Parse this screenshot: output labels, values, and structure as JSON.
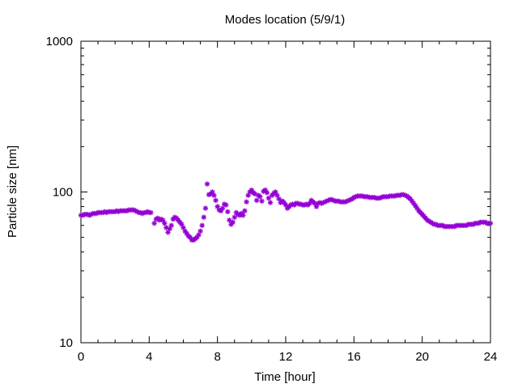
{
  "chart_data": {
    "type": "scatter",
    "title": "Modes location (5/9/1)",
    "xlabel": "Time [hour]",
    "ylabel": "Particle size [nm]",
    "xlim": [
      0,
      24
    ],
    "ylim": [
      10,
      1000
    ],
    "yscale": "log",
    "xticks": [
      0,
      4,
      8,
      12,
      16,
      20,
      24
    ],
    "yticks": [
      10,
      100,
      1000
    ],
    "xtick_labels": [
      "0",
      "4",
      "8",
      "12",
      "16",
      "20",
      "24"
    ],
    "ytick_labels": [
      "10",
      "100",
      "1000"
    ],
    "grid": false,
    "legend": "none",
    "marker": "asterisk",
    "series": [
      {
        "color": "#9400d3",
        "points": [
          [
            0.0,
            70
          ],
          [
            0.1,
            70
          ],
          [
            0.2,
            71
          ],
          [
            0.3,
            71
          ],
          [
            0.4,
            71
          ],
          [
            0.5,
            70
          ],
          [
            0.6,
            71
          ],
          [
            0.7,
            72
          ],
          [
            0.8,
            72
          ],
          [
            0.9,
            72
          ],
          [
            1.0,
            73
          ],
          [
            1.1,
            73
          ],
          [
            1.2,
            73
          ],
          [
            1.3,
            73
          ],
          [
            1.4,
            74
          ],
          [
            1.5,
            73
          ],
          [
            1.6,
            74
          ],
          [
            1.7,
            74
          ],
          [
            1.8,
            74
          ],
          [
            1.9,
            74
          ],
          [
            2.0,
            74
          ],
          [
            2.1,
            75
          ],
          [
            2.2,
            74
          ],
          [
            2.3,
            75
          ],
          [
            2.4,
            75
          ],
          [
            2.5,
            75
          ],
          [
            2.6,
            75
          ],
          [
            2.7,
            75
          ],
          [
            2.8,
            76
          ],
          [
            2.9,
            76
          ],
          [
            3.0,
            76
          ],
          [
            3.1,
            76
          ],
          [
            3.2,
            75
          ],
          [
            3.3,
            74
          ],
          [
            3.4,
            73
          ],
          [
            3.5,
            73
          ],
          [
            3.6,
            72
          ],
          [
            3.7,
            73
          ],
          [
            3.8,
            73
          ],
          [
            3.9,
            74
          ],
          [
            4.0,
            73
          ],
          [
            4.1,
            73
          ],
          [
            4.3,
            62
          ],
          [
            4.4,
            66
          ],
          [
            4.5,
            67
          ],
          [
            4.6,
            65
          ],
          [
            4.7,
            66
          ],
          [
            4.8,
            65
          ],
          [
            4.9,
            62
          ],
          [
            5.0,
            58
          ],
          [
            5.1,
            54
          ],
          [
            5.2,
            57
          ],
          [
            5.3,
            60
          ],
          [
            5.4,
            66
          ],
          [
            5.5,
            68
          ],
          [
            5.6,
            67
          ],
          [
            5.7,
            65
          ],
          [
            5.8,
            63
          ],
          [
            5.9,
            61
          ],
          [
            6.0,
            58
          ],
          [
            6.1,
            55
          ],
          [
            6.2,
            53
          ],
          [
            6.3,
            51
          ],
          [
            6.4,
            50
          ],
          [
            6.5,
            48
          ],
          [
            6.6,
            48
          ],
          [
            6.7,
            49
          ],
          [
            6.8,
            50
          ],
          [
            6.9,
            52
          ],
          [
            7.0,
            55
          ],
          [
            7.1,
            60
          ],
          [
            7.2,
            68
          ],
          [
            7.3,
            78
          ],
          [
            7.4,
            113
          ],
          [
            7.5,
            96
          ],
          [
            7.6,
            97
          ],
          [
            7.7,
            100
          ],
          [
            7.8,
            95
          ],
          [
            7.9,
            88
          ],
          [
            8.0,
            80
          ],
          [
            8.1,
            76
          ],
          [
            8.2,
            75
          ],
          [
            8.3,
            78
          ],
          [
            8.4,
            83
          ],
          [
            8.5,
            82
          ],
          [
            8.6,
            74
          ],
          [
            8.7,
            65
          ],
          [
            8.8,
            61
          ],
          [
            8.9,
            63
          ],
          [
            9.0,
            68
          ],
          [
            9.1,
            73
          ],
          [
            9.2,
            71
          ],
          [
            9.3,
            70
          ],
          [
            9.4,
            72
          ],
          [
            9.5,
            70
          ],
          [
            9.6,
            75
          ],
          [
            9.7,
            86
          ],
          [
            9.8,
            95
          ],
          [
            9.9,
            100
          ],
          [
            10.0,
            103
          ],
          [
            10.1,
            99
          ],
          [
            10.2,
            97
          ],
          [
            10.3,
            88
          ],
          [
            10.4,
            95
          ],
          [
            10.5,
            93
          ],
          [
            10.6,
            87
          ],
          [
            10.7,
            101
          ],
          [
            10.8,
            103
          ],
          [
            10.9,
            99
          ],
          [
            11.0,
            91
          ],
          [
            11.1,
            85
          ],
          [
            11.2,
            95
          ],
          [
            11.3,
            98
          ],
          [
            11.4,
            100
          ],
          [
            11.5,
            95
          ],
          [
            11.6,
            90
          ],
          [
            11.7,
            85
          ],
          [
            11.8,
            87
          ],
          [
            11.9,
            85
          ],
          [
            12.0,
            82
          ],
          [
            12.1,
            78
          ],
          [
            12.2,
            80
          ],
          [
            12.3,
            82
          ],
          [
            12.4,
            83
          ],
          [
            12.5,
            82
          ],
          [
            12.6,
            84
          ],
          [
            12.7,
            84
          ],
          [
            12.8,
            83
          ],
          [
            12.9,
            83
          ],
          [
            13.0,
            82
          ],
          [
            13.1,
            82
          ],
          [
            13.2,
            83
          ],
          [
            13.3,
            82
          ],
          [
            13.4,
            84
          ],
          [
            13.5,
            88
          ],
          [
            13.6,
            86
          ],
          [
            13.7,
            84
          ],
          [
            13.8,
            80
          ],
          [
            13.9,
            84
          ],
          [
            14.0,
            85
          ],
          [
            14.1,
            84
          ],
          [
            14.2,
            85
          ],
          [
            14.3,
            86
          ],
          [
            14.4,
            87
          ],
          [
            14.5,
            88
          ],
          [
            14.6,
            89
          ],
          [
            14.7,
            89
          ],
          [
            14.8,
            88
          ],
          [
            14.9,
            87
          ],
          [
            15.0,
            87
          ],
          [
            15.1,
            87
          ],
          [
            15.2,
            86
          ],
          [
            15.3,
            86
          ],
          [
            15.4,
            86
          ],
          [
            15.5,
            86
          ],
          [
            15.6,
            87
          ],
          [
            15.7,
            88
          ],
          [
            15.8,
            89
          ],
          [
            15.9,
            90
          ],
          [
            16.0,
            92
          ],
          [
            16.1,
            93
          ],
          [
            16.2,
            94
          ],
          [
            16.3,
            94
          ],
          [
            16.4,
            94
          ],
          [
            16.5,
            94
          ],
          [
            16.6,
            93
          ],
          [
            16.7,
            93
          ],
          [
            16.8,
            93
          ],
          [
            16.9,
            92
          ],
          [
            17.0,
            92
          ],
          [
            17.1,
            92
          ],
          [
            17.2,
            92
          ],
          [
            17.3,
            91
          ],
          [
            17.4,
            91
          ],
          [
            17.5,
            91
          ],
          [
            17.6,
            92
          ],
          [
            17.7,
            93
          ],
          [
            17.8,
            93
          ],
          [
            17.9,
            93
          ],
          [
            18.0,
            93
          ],
          [
            18.1,
            94
          ],
          [
            18.2,
            94
          ],
          [
            18.3,
            94
          ],
          [
            18.4,
            94
          ],
          [
            18.5,
            95
          ],
          [
            18.6,
            95
          ],
          [
            18.7,
            95
          ],
          [
            18.8,
            96
          ],
          [
            18.9,
            96
          ],
          [
            19.0,
            95
          ],
          [
            19.1,
            94
          ],
          [
            19.2,
            92
          ],
          [
            19.3,
            90
          ],
          [
            19.4,
            87
          ],
          [
            19.5,
            84
          ],
          [
            19.6,
            81
          ],
          [
            19.7,
            78
          ],
          [
            19.8,
            75
          ],
          [
            19.9,
            73
          ],
          [
            20.0,
            71
          ],
          [
            20.1,
            69
          ],
          [
            20.2,
            67
          ],
          [
            20.3,
            65
          ],
          [
            20.4,
            64
          ],
          [
            20.5,
            63
          ],
          [
            20.6,
            62
          ],
          [
            20.7,
            61
          ],
          [
            20.8,
            61
          ],
          [
            20.9,
            60
          ],
          [
            21.0,
            60
          ],
          [
            21.1,
            60
          ],
          [
            21.2,
            60
          ],
          [
            21.3,
            59
          ],
          [
            21.4,
            59
          ],
          [
            21.5,
            59
          ],
          [
            21.6,
            59
          ],
          [
            21.7,
            59
          ],
          [
            21.8,
            59
          ],
          [
            21.9,
            59
          ],
          [
            22.0,
            60
          ],
          [
            22.1,
            60
          ],
          [
            22.2,
            60
          ],
          [
            22.3,
            60
          ],
          [
            22.4,
            60
          ],
          [
            22.5,
            60
          ],
          [
            22.6,
            60
          ],
          [
            22.7,
            61
          ],
          [
            22.8,
            61
          ],
          [
            22.9,
            61
          ],
          [
            23.0,
            61
          ],
          [
            23.1,
            62
          ],
          [
            23.2,
            62
          ],
          [
            23.3,
            62
          ],
          [
            23.4,
            63
          ],
          [
            23.5,
            63
          ],
          [
            23.6,
            63
          ],
          [
            23.7,
            63
          ],
          [
            23.8,
            62
          ],
          [
            23.9,
            62
          ],
          [
            24.0,
            62
          ]
        ]
      }
    ]
  }
}
